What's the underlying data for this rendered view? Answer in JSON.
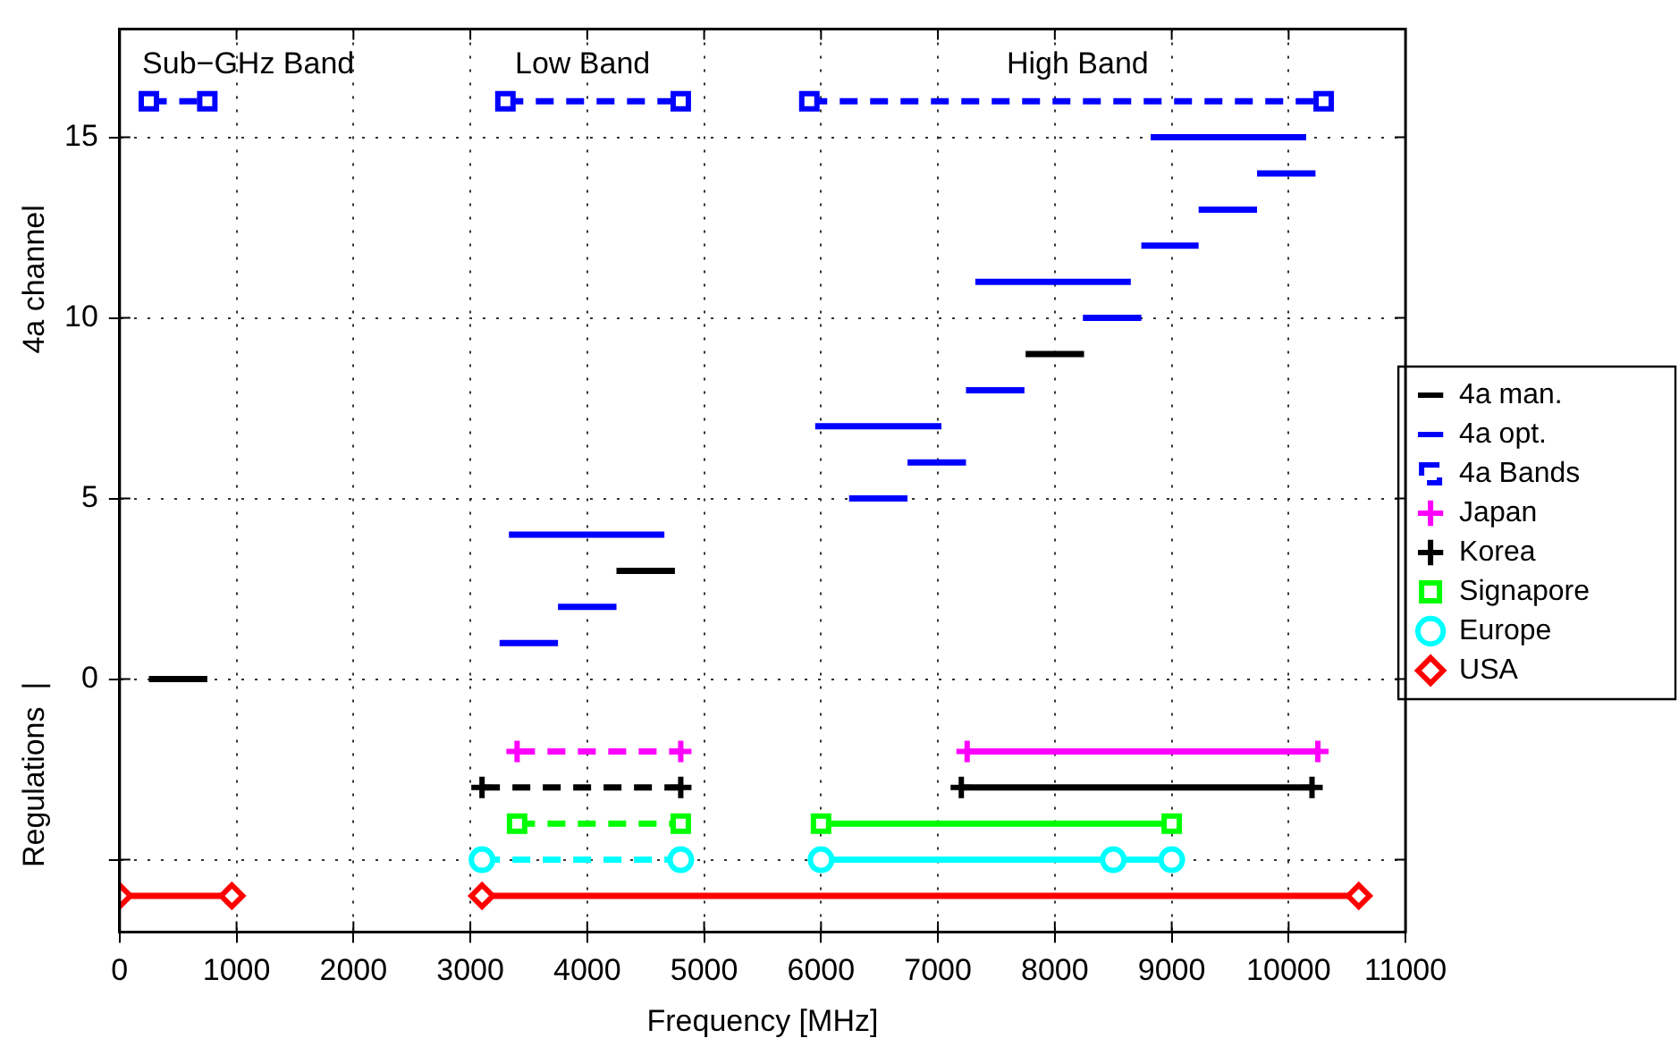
{
  "chart_data": {
    "type": "line",
    "xlabel": "Frequency [MHz]",
    "ylabel": "4a channel",
    "xlim": [
      0,
      11000
    ],
    "xticks": [
      0,
      1000,
      2000,
      3000,
      4000,
      5000,
      6000,
      7000,
      8000,
      9000,
      10000,
      11000
    ],
    "ylim": [
      -7,
      18
    ],
    "yticks": [
      {
        "value": -5,
        "label": null
      },
      0,
      5,
      10,
      15
    ],
    "grid": true,
    "legend": "right",
    "annotations": [
      "Sub−GHz Band",
      "Low Band",
      "High Band",
      "Regulations  |"
    ],
    "series": [
      {
        "name": "4a man.",
        "color": "#000000",
        "marker": "none",
        "line_style": "solid",
        "x": [
          250,
          750,
          null,
          4250,
          4750,
          null,
          7750,
          8250
        ],
        "values": [
          0,
          0,
          null,
          3,
          3,
          null,
          9,
          9
        ]
      },
      {
        "name": "4a opt.",
        "color": "#0000ff",
        "marker": "none",
        "line_style": "solid",
        "x": [
          3250,
          3750,
          null,
          3750,
          4250,
          null,
          3330,
          4660,
          null,
          6240,
          6740,
          null,
          6740,
          7240,
          null,
          5950,
          7030,
          null,
          7240,
          7740,
          null,
          8240,
          8740,
          null,
          7320,
          8650,
          null,
          8740,
          9230,
          null,
          9230,
          9730,
          null,
          9730,
          10230,
          null,
          8820,
          10150
        ],
        "values": [
          1,
          1,
          null,
          2,
          2,
          null,
          4,
          4,
          null,
          5,
          5,
          null,
          6,
          6,
          null,
          7,
          7,
          null,
          8,
          8,
          null,
          10,
          10,
          null,
          11,
          11,
          null,
          12,
          12,
          null,
          13,
          13,
          null,
          14,
          14,
          null,
          15,
          15
        ]
      },
      {
        "name": "4a Bands",
        "color": "#0000ff",
        "marker": "square",
        "line_style": "dashed",
        "x": [
          250,
          750,
          null,
          3300,
          4800,
          null,
          5900,
          10300
        ],
        "values": [
          16,
          16,
          null,
          16,
          16,
          null,
          16,
          16
        ]
      },
      {
        "name": "Japan",
        "color": "#ff00ff",
        "marker": "cross",
        "line_style": "solid",
        "x": [
          7250,
          10250
        ],
        "values": [
          -2,
          -2
        ]
      },
      {
        "name": "Korea",
        "color": "#000000",
        "marker": "cross",
        "line_style": "solid",
        "x": [
          7200,
          10200
        ],
        "values": [
          -3,
          -3
        ]
      },
      {
        "name": "Signapore",
        "color": "#00ff00",
        "marker": "square",
        "line_style": "solid",
        "x": [
          6000,
          9000
        ],
        "values": [
          -4,
          -4
        ]
      },
      {
        "name": "Europe",
        "color": "#00ffff",
        "marker": "circle",
        "line_style": "solid",
        "x": [
          6000,
          8500,
          9000
        ],
        "values": [
          -5,
          -5,
          -5
        ]
      },
      {
        "name": "USA",
        "color": "#ff0000",
        "marker": "diamond",
        "line_style": "solid",
        "x": [
          0,
          960,
          null,
          3100,
          10600
        ],
        "values": [
          -6,
          -6,
          null,
          -6,
          -6
        ]
      },
      {
        "color": "#ff00ff",
        "marker": "cross",
        "line_style": "dashed",
        "x": [
          3400,
          4800
        ],
        "values": [
          -2,
          -2
        ]
      },
      {
        "color": "#000000",
        "marker": "cross",
        "line_style": "dashed",
        "x": [
          3100,
          4800
        ],
        "values": [
          -3,
          -3
        ]
      },
      {
        "color": "#00ff00",
        "marker": "square",
        "line_style": "dashed",
        "x": [
          3400,
          4800
        ],
        "values": [
          -4,
          -4
        ]
      },
      {
        "color": "#00ffff",
        "marker": "circle",
        "line_style": "dashed",
        "x": [
          3100,
          4800
        ],
        "values": [
          -5,
          -5
        ]
      }
    ]
  }
}
